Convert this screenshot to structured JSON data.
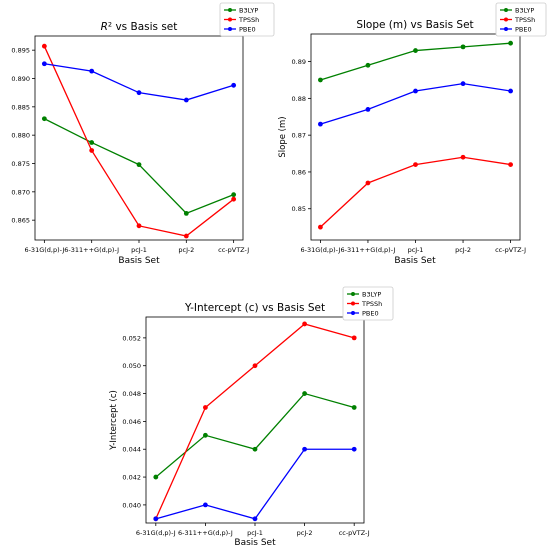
{
  "chart_data": [
    {
      "type": "line",
      "title": "R² vs Basis set",
      "xlabel": "Basis Set",
      "ylabel": "",
      "categories": [
        "6-31G(d,p)-J",
        "6-311++G(d,p)-J",
        "pcJ-1",
        "pcJ-2",
        "cc-pVTZ-J"
      ],
      "ylim": [
        0.8615,
        0.8975
      ],
      "yticks": [
        0.865,
        0.87,
        0.875,
        0.88,
        0.885,
        0.89,
        0.895
      ],
      "ytick_labels": [
        "0.865",
        "0.870",
        "0.875",
        "0.880",
        "0.885",
        "0.890",
        "0.895"
      ],
      "legend": "top-right",
      "series": [
        {
          "name": "B3LYP",
          "color": "#008000",
          "values": [
            0.8829,
            0.8787,
            0.8748,
            0.8662,
            0.8695
          ]
        },
        {
          "name": "TPSSh",
          "color": "#ff0000",
          "values": [
            0.8957,
            0.8773,
            0.864,
            0.8622,
            0.8687
          ]
        },
        {
          "name": "PBE0",
          "color": "#0000ff",
          "values": [
            0.8926,
            0.8913,
            0.8875,
            0.8862,
            0.8888
          ]
        }
      ]
    },
    {
      "type": "line",
      "title": "Slope (m) vs Basis Set",
      "xlabel": "Basis Set",
      "ylabel": "Slope (m)",
      "categories": [
        "6-31G(d,p)-J",
        "6-311++G(d,p)-J",
        "pcJ-1",
        "pcJ-2",
        "cc-pVTZ-J"
      ],
      "ylim": [
        0.8415,
        0.8975
      ],
      "yticks": [
        0.85,
        0.86,
        0.87,
        0.88,
        0.89
      ],
      "ytick_labels": [
        "0.85",
        "0.86",
        "0.87",
        "0.88",
        "0.89"
      ],
      "legend": "top-right",
      "series": [
        {
          "name": "B3LYP",
          "color": "#008000",
          "values": [
            0.885,
            0.889,
            0.893,
            0.894,
            0.895
          ]
        },
        {
          "name": "TPSSh",
          "color": "#ff0000",
          "values": [
            0.845,
            0.857,
            0.862,
            0.864,
            0.862
          ]
        },
        {
          "name": "PBE0",
          "color": "#0000ff",
          "values": [
            0.873,
            0.877,
            0.882,
            0.884,
            0.882
          ]
        }
      ]
    },
    {
      "type": "line",
      "title": "Y-Intercept (c) vs Basis Set",
      "xlabel": "Basis Set",
      "ylabel": "Y-Intercept (c)",
      "categories": [
        "6-31G(d,p)-J",
        "6-311++G(d,p)-J",
        "pcJ-1",
        "pcJ-2",
        "cc-pVTZ-J"
      ],
      "ylim": [
        0.0387,
        0.0535
      ],
      "yticks": [
        0.04,
        0.042,
        0.044,
        0.046,
        0.048,
        0.05,
        0.052
      ],
      "ytick_labels": [
        "0.040",
        "0.042",
        "0.044",
        "0.046",
        "0.048",
        "0.050",
        "0.052"
      ],
      "legend": "top-right",
      "series": [
        {
          "name": "B3LYP",
          "color": "#008000",
          "values": [
            0.042,
            0.045,
            0.044,
            0.048,
            0.047
          ]
        },
        {
          "name": "TPSSh",
          "color": "#ff0000",
          "values": [
            0.039,
            0.047,
            0.05,
            0.053,
            0.052
          ]
        },
        {
          "name": "PBE0",
          "color": "#0000ff",
          "values": [
            0.039,
            0.04,
            0.039,
            0.044,
            0.044
          ]
        }
      ]
    }
  ]
}
